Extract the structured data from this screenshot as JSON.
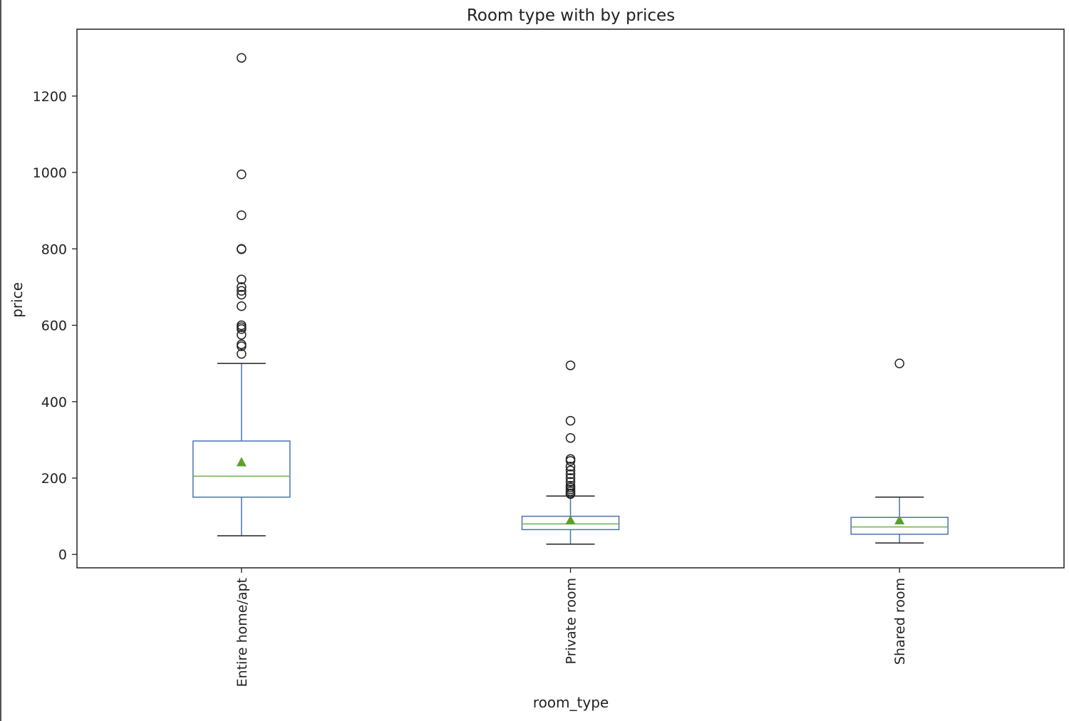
{
  "chart_data": {
    "type": "box",
    "title": "Room type with by prices",
    "xlabel": "room_type",
    "ylabel": "price",
    "ylim": [
      -35,
      1375
    ],
    "yticks": [
      0,
      200,
      400,
      600,
      800,
      1000,
      1200
    ],
    "grid": false,
    "show_means": true,
    "categories": [
      "Entire home/apt",
      "Private room",
      "Shared room"
    ],
    "boxes": [
      {
        "category": "Entire home/apt",
        "whislo": 49,
        "q1": 150,
        "median": 205,
        "mean": 242,
        "q3": 297,
        "whishi": 500,
        "fliers": [
          1300,
          995,
          888,
          800,
          799,
          720,
          700,
          690,
          680,
          650,
          600,
          595,
          590,
          575,
          550,
          545,
          525
        ]
      },
      {
        "category": "Private room",
        "whislo": 27,
        "q1": 65,
        "median": 80,
        "mean": 90,
        "q3": 100,
        "whishi": 153,
        "fliers": [
          495,
          350,
          305,
          250,
          245,
          230,
          220,
          210,
          200,
          190,
          180,
          175,
          170,
          165,
          160,
          158
        ]
      },
      {
        "category": "Shared room",
        "whislo": 30,
        "q1": 53,
        "median": 72,
        "mean": 90,
        "q3": 97,
        "whishi": 150,
        "fliers": [
          500
        ]
      }
    ],
    "colors": {
      "box": "#4c72b0",
      "whisker": "#4c72b0",
      "cap": "#222222",
      "median": "#6ab04c",
      "mean": "#5aa02c",
      "flier": "#222222",
      "axes": "#222222"
    }
  }
}
